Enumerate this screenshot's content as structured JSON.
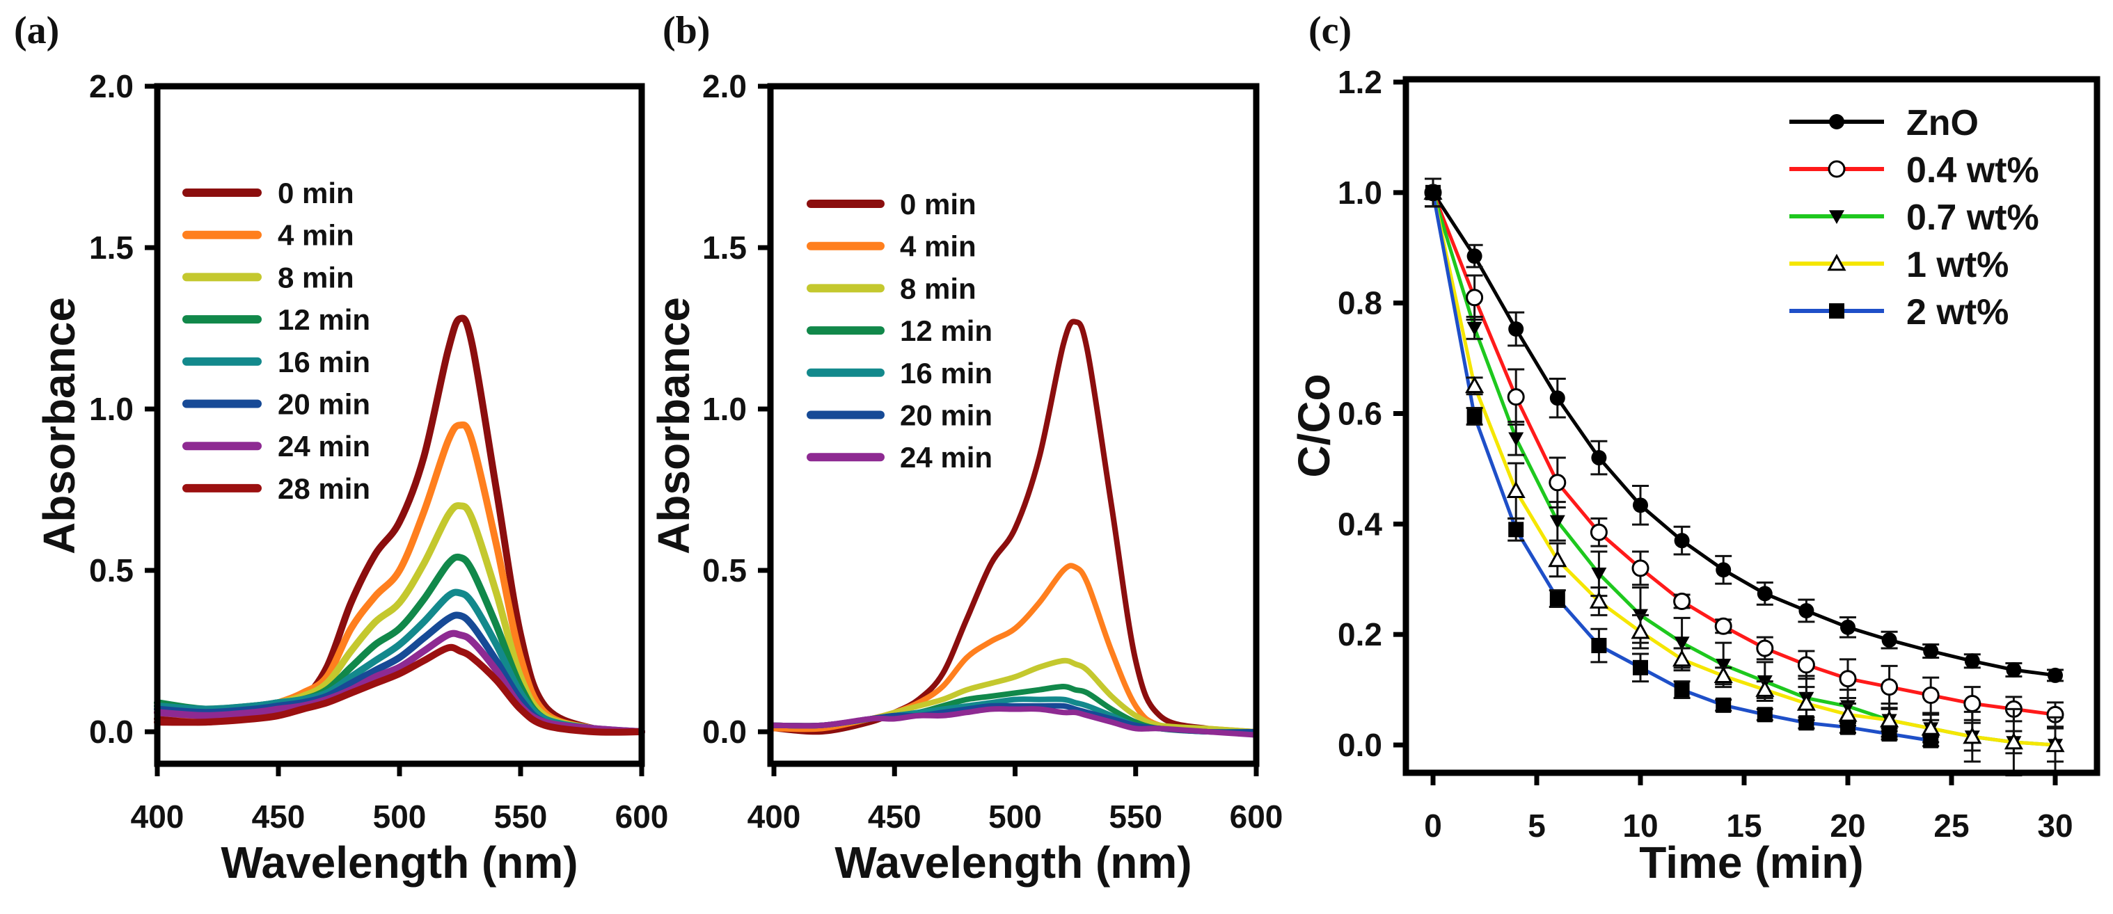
{
  "chart_data": [
    {
      "panel_label": "(a)",
      "type": "line",
      "xlabel": "Wavelength (nm)",
      "ylabel": "Absorbance",
      "xlim": [
        400,
        600
      ],
      "ylim": [
        -0.1,
        2.0
      ],
      "xticks": [
        "400",
        "450",
        "500",
        "550",
        "600"
      ],
      "yticks": [
        "0.0",
        "0.5",
        "1.0",
        "1.5",
        "2.0"
      ],
      "legend_position": "upper-left",
      "x": [
        400,
        420,
        440,
        450,
        460,
        470,
        480,
        490,
        500,
        510,
        520,
        525,
        530,
        540,
        550,
        560,
        580,
        600
      ],
      "series": [
        {
          "name": "0 min",
          "color": "#8b0e0e",
          "values": [
            0.04,
            0.03,
            0.05,
            0.07,
            0.1,
            0.2,
            0.4,
            0.55,
            0.65,
            0.85,
            1.18,
            1.28,
            1.2,
            0.75,
            0.3,
            0.08,
            0.01,
            0
          ]
        },
        {
          "name": "4 min",
          "color": "#ff7f1e",
          "values": [
            0.06,
            0.05,
            0.07,
            0.09,
            0.12,
            0.17,
            0.32,
            0.42,
            0.5,
            0.68,
            0.9,
            0.95,
            0.9,
            0.58,
            0.23,
            0.06,
            0.01,
            0
          ]
        },
        {
          "name": "8 min",
          "color": "#c4c82e",
          "values": [
            0.08,
            0.07,
            0.08,
            0.09,
            0.11,
            0.15,
            0.25,
            0.34,
            0.4,
            0.52,
            0.67,
            0.7,
            0.66,
            0.43,
            0.17,
            0.05,
            0.01,
            0
          ]
        },
        {
          "name": "12 min",
          "color": "#11884a",
          "values": [
            0.09,
            0.07,
            0.08,
            0.09,
            0.1,
            0.13,
            0.2,
            0.27,
            0.32,
            0.41,
            0.52,
            0.54,
            0.5,
            0.33,
            0.14,
            0.04,
            0.01,
            0
          ]
        },
        {
          "name": "16 min",
          "color": "#13898c",
          "values": [
            0.08,
            0.07,
            0.08,
            0.09,
            0.1,
            0.12,
            0.17,
            0.22,
            0.27,
            0.34,
            0.42,
            0.43,
            0.4,
            0.27,
            0.12,
            0.04,
            0.01,
            0
          ]
        },
        {
          "name": "20 min",
          "color": "#174a96",
          "values": [
            0.07,
            0.06,
            0.07,
            0.08,
            0.09,
            0.11,
            0.15,
            0.19,
            0.23,
            0.29,
            0.35,
            0.36,
            0.33,
            0.22,
            0.1,
            0.03,
            0.01,
            0
          ]
        },
        {
          "name": "24 min",
          "color": "#8e2a92",
          "values": [
            0.06,
            0.05,
            0.06,
            0.07,
            0.08,
            0.1,
            0.13,
            0.17,
            0.2,
            0.25,
            0.3,
            0.3,
            0.28,
            0.19,
            0.08,
            0.03,
            0.01,
            0
          ]
        },
        {
          "name": "28 min",
          "color": "#9b1010",
          "values": [
            0.03,
            0.03,
            0.04,
            0.05,
            0.07,
            0.09,
            0.12,
            0.15,
            0.18,
            0.22,
            0.26,
            0.25,
            0.23,
            0.16,
            0.07,
            0.02,
            0,
            0
          ]
        }
      ]
    },
    {
      "panel_label": "(b)",
      "type": "line",
      "xlabel": "Wavelength (nm)",
      "ylabel": "Absorbance",
      "xlim": [
        400,
        600
      ],
      "ylim": [
        -0.1,
        2.0
      ],
      "xticks": [
        "400",
        "450",
        "500",
        "550",
        "600"
      ],
      "yticks": [
        "0.0",
        "0.5",
        "1.0",
        "1.5",
        "2.0"
      ],
      "legend_position": "upper-left",
      "x": [
        400,
        420,
        440,
        450,
        460,
        470,
        480,
        490,
        500,
        510,
        520,
        525,
        530,
        540,
        550,
        560,
        580,
        600
      ],
      "series": [
        {
          "name": "0 min",
          "color": "#8b0e0e",
          "values": [
            0.01,
            0.0,
            0.03,
            0.06,
            0.1,
            0.18,
            0.35,
            0.52,
            0.63,
            0.85,
            1.2,
            1.27,
            1.18,
            0.7,
            0.22,
            0.05,
            0.01,
            0
          ]
        },
        {
          "name": "4 min",
          "color": "#ff7f1e",
          "values": [
            0.01,
            0.01,
            0.04,
            0.06,
            0.09,
            0.14,
            0.23,
            0.28,
            0.32,
            0.4,
            0.5,
            0.51,
            0.46,
            0.25,
            0.08,
            0.02,
            0.01,
            0
          ]
        },
        {
          "name": "8 min",
          "color": "#c4c82e",
          "values": [
            0.02,
            0.02,
            0.04,
            0.06,
            0.08,
            0.1,
            0.13,
            0.15,
            0.17,
            0.2,
            0.22,
            0.21,
            0.19,
            0.11,
            0.05,
            0.02,
            0.01,
            0
          ]
        },
        {
          "name": "12 min",
          "color": "#11884a",
          "values": [
            0.02,
            0.02,
            0.04,
            0.05,
            0.06,
            0.08,
            0.1,
            0.11,
            0.12,
            0.13,
            0.14,
            0.13,
            0.12,
            0.07,
            0.03,
            0.01,
            0,
            0
          ]
        },
        {
          "name": "16 min",
          "color": "#13898c",
          "values": [
            0.02,
            0.02,
            0.04,
            0.05,
            0.06,
            0.07,
            0.08,
            0.09,
            0.1,
            0.1,
            0.1,
            0.09,
            0.08,
            0.05,
            0.02,
            0.01,
            0,
            0
          ]
        },
        {
          "name": "20 min",
          "color": "#174a96",
          "values": [
            0.02,
            0.02,
            0.04,
            0.05,
            0.05,
            0.06,
            0.07,
            0.08,
            0.08,
            0.08,
            0.08,
            0.07,
            0.06,
            0.04,
            0.02,
            0.01,
            0,
            0
          ]
        },
        {
          "name": "24 min",
          "color": "#8e2a92",
          "values": [
            0.02,
            0.02,
            0.04,
            0.04,
            0.05,
            0.05,
            0.06,
            0.07,
            0.07,
            0.07,
            0.06,
            0.06,
            0.05,
            0.03,
            0.01,
            0.01,
            0,
            -0.01
          ]
        }
      ]
    },
    {
      "panel_label": "(c)",
      "type": "line",
      "xlabel": "Time (min)",
      "ylabel": "C/Co",
      "xlim": [
        -1,
        32
      ],
      "ylim": [
        -0.05,
        1.2
      ],
      "xticks": [
        "0",
        "5",
        "10",
        "15",
        "20",
        "25",
        "30"
      ],
      "yticks": [
        "0.0",
        "0.2",
        "0.4",
        "0.6",
        "0.8",
        "1.0",
        "1.2"
      ],
      "legend_position": "top-right",
      "series": [
        {
          "name": "ZnO",
          "color": "#000000",
          "marker": "filled-circle",
          "x": [
            0,
            2,
            4,
            6,
            8,
            10,
            12,
            14,
            16,
            18,
            20,
            22,
            24,
            26,
            28,
            30
          ],
          "values": [
            1.0,
            0.885,
            0.753,
            0.628,
            0.52,
            0.434,
            0.37,
            0.317,
            0.274,
            0.243,
            0.213,
            0.19,
            0.17,
            0.152,
            0.136,
            0.126
          ],
          "errors": [
            0.025,
            0.02,
            0.03,
            0.035,
            0.03,
            0.035,
            0.025,
            0.025,
            0.02,
            0.02,
            0.018,
            0.015,
            0.012,
            0.012,
            0.012,
            0.01
          ]
        },
        {
          "name": "0.4 wt%",
          "color": "#ff1a1a",
          "marker": "open-circle",
          "x": [
            0,
            2,
            4,
            6,
            8,
            10,
            12,
            14,
            16,
            18,
            20,
            22,
            24,
            26,
            28,
            30
          ],
          "values": [
            1.0,
            0.81,
            0.63,
            0.475,
            0.385,
            0.32,
            0.26,
            0.215,
            0.175,
            0.145,
            0.12,
            0.105,
            0.09,
            0.075,
            0.065,
            0.055
          ],
          "errors": [
            0.025,
            0.04,
            0.05,
            0.045,
            0.025,
            0.03,
            0.012,
            0.012,
            0.02,
            0.025,
            0.035,
            0.038,
            0.032,
            0.03,
            0.022,
            0.022
          ]
        },
        {
          "name": "0.7 wt%",
          "color": "#1ec81e",
          "marker": "filled-triangle-down",
          "x": [
            0,
            2,
            4,
            6,
            8,
            10,
            12,
            14,
            16,
            18,
            20,
            22,
            24,
            26,
            28,
            30
          ],
          "values": [
            1.0,
            0.755,
            0.555,
            0.405,
            0.31,
            0.235,
            0.185,
            0.145,
            0.115,
            0.085,
            0.07,
            0.045,
            0.03,
            0.015,
            0.005,
            0.0
          ],
          "errors": [
            0.025,
            0.02,
            0.03,
            0.035,
            0.04,
            0.05,
            0.045,
            0.04,
            0.035,
            0.04,
            0.03,
            0.03,
            0.025,
            0.025,
            0.02,
            0.03
          ]
        },
        {
          "name": "1 wt%",
          "color": "#f5e600",
          "marker": "open-triangle-up",
          "x": [
            0,
            2,
            4,
            6,
            8,
            10,
            12,
            14,
            16,
            18,
            20,
            22,
            24,
            26,
            28,
            30
          ],
          "values": [
            1.0,
            0.65,
            0.46,
            0.335,
            0.26,
            0.205,
            0.155,
            0.125,
            0.1,
            0.075,
            0.055,
            0.045,
            0.03,
            0.015,
            0.005,
            0.0
          ],
          "errors": [
            0.025,
            0.015,
            0.05,
            0.03,
            0.025,
            0.03,
            0.02,
            0.015,
            0.015,
            0.03,
            0.02,
            0.02,
            0.015,
            0.045,
            0.06,
            0.05
          ]
        },
        {
          "name": "2 wt%",
          "color": "#1e4fc8",
          "marker": "filled-square",
          "x": [
            0,
            2,
            4,
            6,
            8,
            10,
            12,
            14,
            16,
            18,
            20,
            22,
            24
          ],
          "values": [
            1.0,
            0.595,
            0.39,
            0.265,
            0.18,
            0.14,
            0.1,
            0.072,
            0.055,
            0.04,
            0.032,
            0.02,
            0.008
          ],
          "errors": [
            0.025,
            0.015,
            0.02,
            0.015,
            0.03,
            0.025,
            0.015,
            0.01,
            0.01,
            0.01,
            0.01,
            0.01,
            0.01
          ]
        }
      ]
    }
  ]
}
